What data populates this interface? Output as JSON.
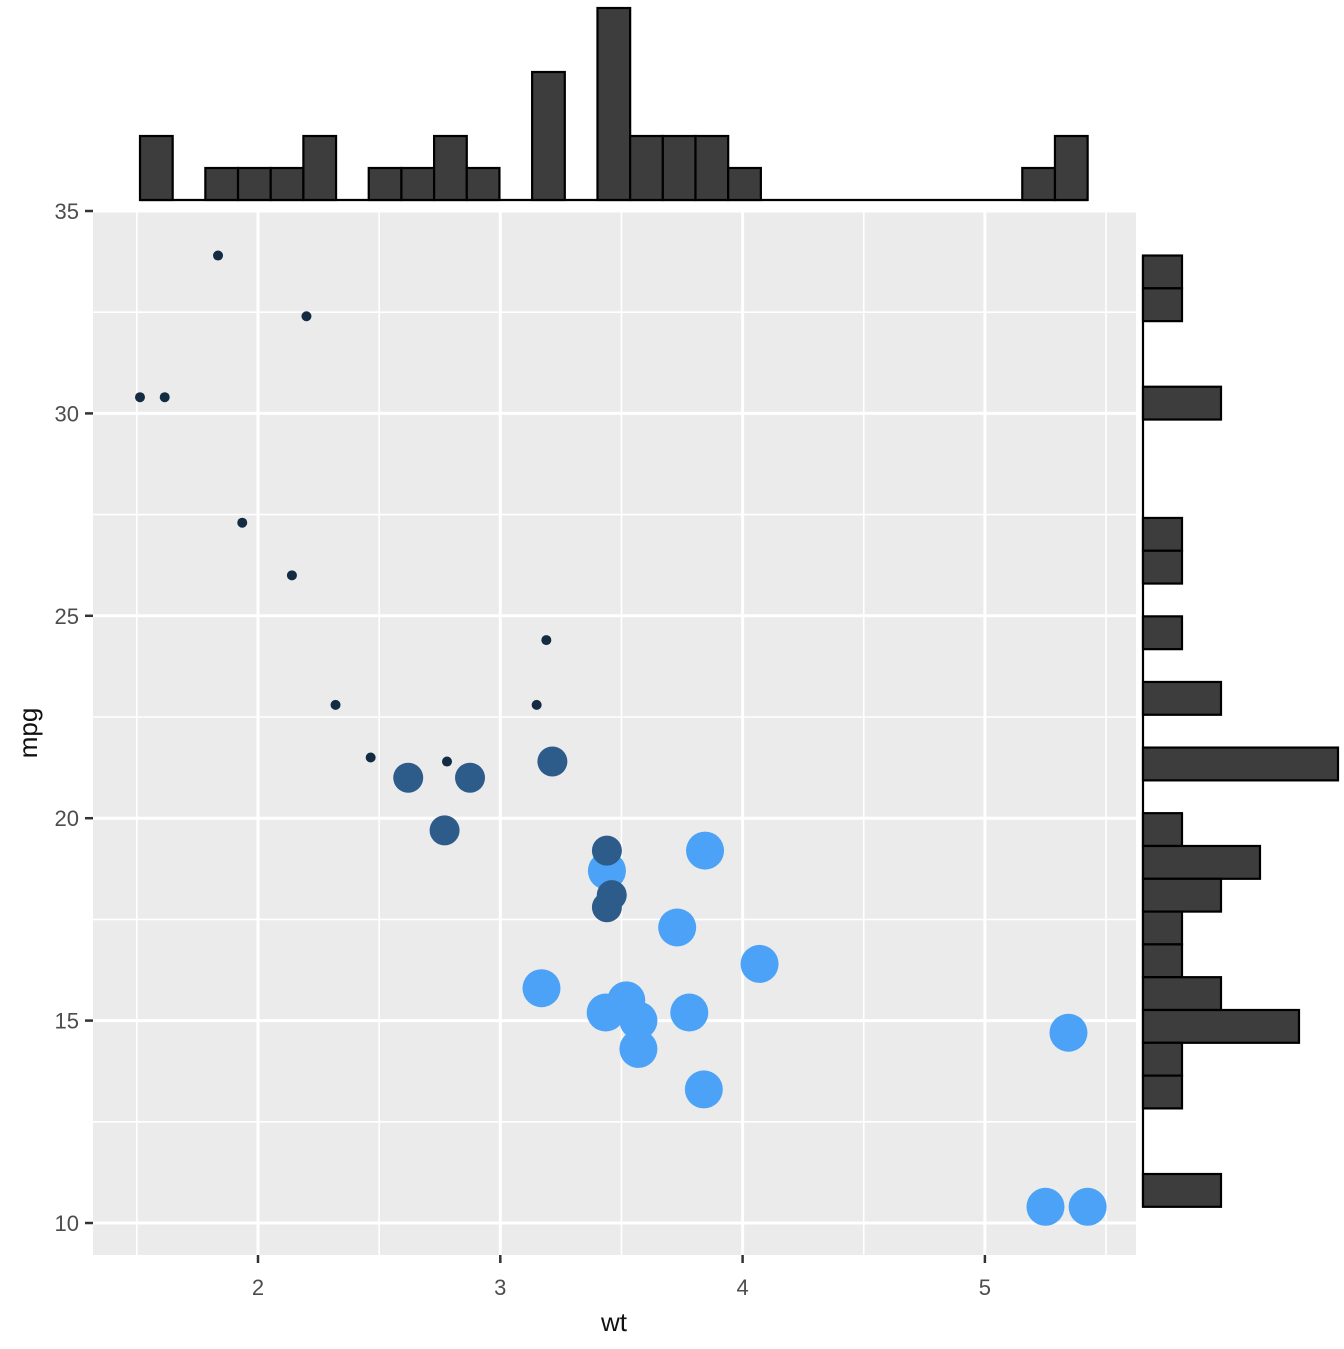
{
  "chart_data": {
    "type": "scatter",
    "title": "",
    "xlabel": "wt",
    "ylabel": "mpg",
    "xlim": [
      1.319,
      5.623
    ],
    "ylim": [
      9.21,
      35.0
    ],
    "grid": true,
    "legend": "none",
    "x_major_ticks": [
      {
        "value": 2,
        "label": "2"
      },
      {
        "value": 3,
        "label": "3"
      },
      {
        "value": 4,
        "label": "4"
      },
      {
        "value": 5,
        "label": "5"
      }
    ],
    "y_major_ticks": [
      {
        "value": 35,
        "label": "35"
      },
      {
        "value": 30,
        "label": "30"
      },
      {
        "value": 25,
        "label": "25"
      },
      {
        "value": 20,
        "label": "20"
      },
      {
        "value": 15,
        "label": "15"
      },
      {
        "value": 10,
        "label": "10"
      }
    ],
    "x_minor_ticks": [
      1.5,
      2.5,
      3.5,
      4.5,
      5.5
    ],
    "y_minor_ticks": [
      12.5,
      17.5,
      22.5,
      27.5,
      32.5
    ],
    "colors": {
      "panel_bg": "#EBEBEB",
      "grid": "#FFFFFF",
      "tick_mark": "#333333",
      "tick_label": "#4D4D4D",
      "axis_title": "#111111",
      "histogram_fill": "#3D3D3D",
      "histogram_stroke": "#000000"
    },
    "series": [
      {
        "name": "group-large-light-blue",
        "color": "#4BA2F6",
        "radius": 19,
        "points": [
          [
            3.44,
            18.7
          ],
          [
            3.57,
            14.3
          ],
          [
            4.07,
            16.4
          ],
          [
            3.73,
            17.3
          ],
          [
            3.78,
            15.2
          ],
          [
            5.25,
            10.4
          ],
          [
            5.424,
            10.4
          ],
          [
            5.345,
            14.7
          ],
          [
            3.52,
            15.5
          ],
          [
            3.435,
            15.2
          ],
          [
            3.84,
            13.3
          ],
          [
            3.845,
            19.2
          ],
          [
            3.17,
            15.8
          ],
          [
            3.57,
            15.0
          ]
        ]
      },
      {
        "name": "group-medium-dark-blue",
        "color": "#2D5C8B",
        "radius": 15,
        "points": [
          [
            2.62,
            21.0
          ],
          [
            2.875,
            21.0
          ],
          [
            3.215,
            21.4
          ],
          [
            3.46,
            18.1
          ],
          [
            3.44,
            19.2
          ],
          [
            3.44,
            17.8
          ],
          [
            2.77,
            19.7
          ]
        ]
      },
      {
        "name": "group-small-dark-navy",
        "color": "#132B43",
        "radius": 5,
        "points": [
          [
            2.32,
            22.8
          ],
          [
            3.19,
            24.4
          ],
          [
            3.15,
            22.8
          ],
          [
            2.2,
            32.4
          ],
          [
            1.615,
            30.4
          ],
          [
            1.835,
            33.9
          ],
          [
            2.465,
            21.5
          ],
          [
            1.935,
            27.3
          ],
          [
            2.14,
            26.0
          ],
          [
            1.513,
            30.4
          ],
          [
            2.78,
            21.4
          ]
        ]
      }
    ],
    "top_histogram": {
      "axis": "x",
      "bin_start": 1.513,
      "bin_width": 0.134862,
      "counts": [
        2,
        0,
        1,
        1,
        1,
        2,
        0,
        1,
        1,
        2,
        1,
        0,
        4,
        0,
        6,
        2,
        2,
        2,
        1,
        0,
        0,
        0,
        0,
        0,
        0,
        0,
        0,
        1,
        2
      ],
      "max_count": 6
    },
    "right_histogram": {
      "axis": "y",
      "bin_start_top": 33.9,
      "bin_width": 0.810345,
      "counts_top_to_bottom": [
        1,
        1,
        0,
        0,
        2,
        0,
        0,
        0,
        1,
        1,
        0,
        1,
        0,
        2,
        0,
        5,
        0,
        1,
        3,
        2,
        1,
        1,
        2,
        4,
        1,
        1,
        0,
        0,
        2
      ],
      "max_count": 5
    }
  }
}
